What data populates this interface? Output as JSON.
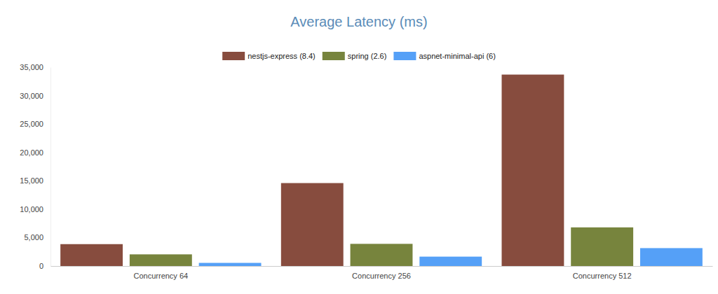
{
  "chart_data": {
    "type": "bar",
    "title": "Average Latency (ms)",
    "categories": [
      "Concurrency 64",
      "Concurrency 256",
      "Concurrency 512"
    ],
    "series": [
      {
        "name": "nestjs-express (8.4)",
        "color": "#874c3e",
        "values": [
          3850,
          14600,
          33700
        ]
      },
      {
        "name": "spring (2.6)",
        "color": "#77843d",
        "values": [
          2050,
          3900,
          6800
        ]
      },
      {
        "name": "aspnet-minimal-api (6)",
        "color": "#55a0f7",
        "values": [
          550,
          1650,
          3150
        ]
      }
    ],
    "ylim": [
      0,
      35000
    ],
    "yticks": [
      0,
      {
        "value": 5000,
        "label": "5,000"
      },
      {
        "value": 10000,
        "label": "10,000"
      },
      {
        "value": 15000,
        "label": "15,000"
      },
      {
        "value": 20000,
        "label": "20,000"
      },
      {
        "value": 25000,
        "label": "25,000"
      },
      {
        "value": 30000,
        "label": "30,000"
      },
      {
        "value": 35000,
        "label": "35,000"
      }
    ],
    "grid": false,
    "legend": "top"
  }
}
